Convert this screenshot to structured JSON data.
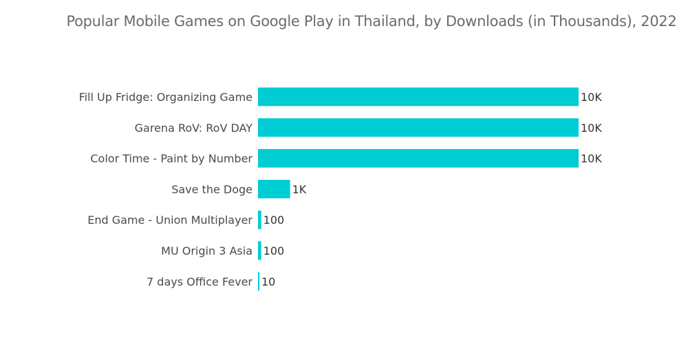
{
  "chart_data": {
    "type": "bar",
    "orientation": "horizontal",
    "title": "Popular Mobile Games on Google Play in Thailand, by Downloads (in Thousands), 2022",
    "categories": [
      "Fill Up Fridge: Organizing Game",
      "Garena RoV: RoV DAY",
      "Color Time - Paint by Number",
      "Save the Doge",
      "End Game - Union Multiplayer",
      "MU Origin 3 Asia",
      "7 days Office Fever"
    ],
    "values": [
      10000,
      10000,
      10000,
      1000,
      100,
      100,
      10
    ],
    "value_labels": [
      "10K",
      "10K",
      "10K",
      "1K",
      "100",
      "100",
      "10"
    ],
    "bar_color": "#00CCD3",
    "xlabel": "",
    "ylabel": "",
    "xlim": [
      0,
      10000
    ],
    "grid": false,
    "legend": "none"
  }
}
